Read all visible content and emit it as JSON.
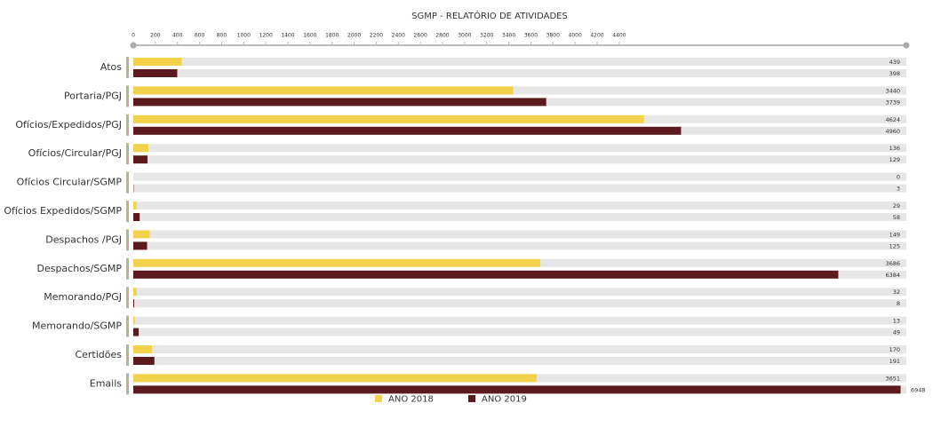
{
  "chart_data": {
    "type": "hbar",
    "title": "SGMP - RELATÓRIO DE ATIVIDADES",
    "categories": [
      "Atos",
      "Portaria/PGJ",
      "Ofícios/Expedidos/PGJ",
      "Ofícios/Circular/PGJ",
      "Ofícios Circular/SGMP",
      "Ofícios Expedidos/SGMP",
      "Despachos /PGJ",
      "Despachos/SGMP",
      "Memorando/PGJ",
      "Memorando/SGMP",
      "Certidões",
      "Emails"
    ],
    "series": [
      {
        "name": "ANO 2018",
        "color": "#f2d24b",
        "label_color": "#333333",
        "values": [
          439,
          3440,
          4624,
          136,
          0,
          29,
          149,
          3686,
          32,
          13,
          170,
          3651
        ]
      },
      {
        "name": "ANO 2019",
        "color": "#5c1a1e",
        "label_color": "#c77a2a",
        "values": [
          398,
          3739,
          4960,
          129,
          3,
          58,
          125,
          6384,
          8,
          49,
          191,
          6948
        ]
      }
    ],
    "xlim": [
      0,
      7000
    ],
    "xticks": [
      0,
      200,
      400,
      600,
      800,
      1000,
      1200,
      1400,
      1600,
      1800,
      2000,
      2200,
      2400,
      2600,
      2800,
      3000,
      3200,
      3400,
      3600,
      3800,
      4000,
      4200,
      4400
    ],
    "legend": "bottom"
  }
}
